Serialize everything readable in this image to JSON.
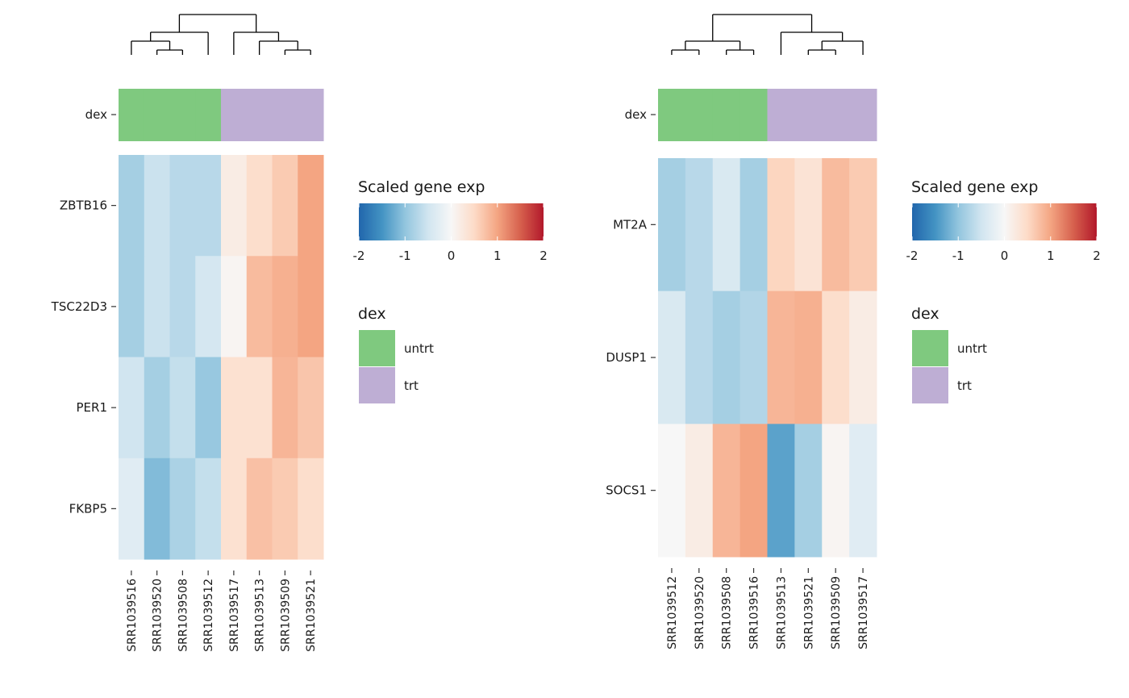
{
  "legend_title": "Scaled gene exp",
  "colorbar_ticks": [
    -2,
    -1,
    0,
    1,
    2
  ],
  "colorbar_range": [
    -2,
    2
  ],
  "annotation_label": "dex",
  "groups": [
    {
      "name": "untrt",
      "color": "#7fc97f"
    },
    {
      "name": "trt",
      "color": "#beaed4"
    }
  ],
  "palette": [
    "#2166ac",
    "#4393c3",
    "#92c5de",
    "#d1e5f0",
    "#f7f7f7",
    "#fddbc7",
    "#f4a582",
    "#d6604d",
    "#b2182b"
  ],
  "chart_data": [
    {
      "type": "heatmap",
      "title": "",
      "genes": [
        "ZBTB16",
        "TSC22D3",
        "PER1",
        "FKBP5"
      ],
      "samples": [
        "SRR1039516",
        "SRR1039520",
        "SRR1039508",
        "SRR1039512",
        "SRR1039517",
        "SRR1039513",
        "SRR1039509",
        "SRR1039521"
      ],
      "sample_groups": [
        "untrt",
        "untrt",
        "untrt",
        "untrt",
        "trt",
        "trt",
        "trt",
        "trt"
      ],
      "values": [
        [
          -0.85,
          -0.55,
          -0.7,
          -0.7,
          0.2,
          0.45,
          0.65,
          1.0
        ],
        [
          -0.85,
          -0.55,
          -0.7,
          -0.45,
          0.05,
          0.8,
          0.9,
          1.0
        ],
        [
          -0.5,
          -0.85,
          -0.6,
          -0.95,
          0.4,
          0.4,
          0.85,
          0.7
        ],
        [
          -0.3,
          -1.1,
          -0.8,
          -0.6,
          0.4,
          0.75,
          0.65,
          0.45
        ]
      ],
      "dendrogram": "((SRR1039516,(SRR1039520,SRR1039508)),SRR1039512),(SRR1039517,(SRR1039513,(SRR1039509,SRR1039521)))"
    },
    {
      "type": "heatmap",
      "title": "",
      "genes": [
        "MT2A",
        "DUSP1",
        "SOCS1"
      ],
      "samples": [
        "SRR1039512",
        "SRR1039520",
        "SRR1039508",
        "SRR1039516",
        "SRR1039513",
        "SRR1039521",
        "SRR1039509",
        "SRR1039517"
      ],
      "sample_groups": [
        "untrt",
        "untrt",
        "untrt",
        "untrt",
        "trt",
        "trt",
        "trt",
        "trt"
      ],
      "values": [
        [
          -0.85,
          -0.7,
          -0.4,
          -0.85,
          0.55,
          0.35,
          0.8,
          0.65
        ],
        [
          -0.4,
          -0.7,
          -0.85,
          -0.75,
          0.85,
          0.9,
          0.45,
          0.2
        ],
        [
          0.0,
          0.2,
          0.85,
          1.0,
          -1.35,
          -0.85,
          0.05,
          -0.3
        ]
      ],
      "dendrogram": "((SRR1039512,SRR1039520),(SRR1039508,SRR1039516)),(SRR1039513,((SRR1039521,SRR1039509),SRR1039517))"
    }
  ]
}
